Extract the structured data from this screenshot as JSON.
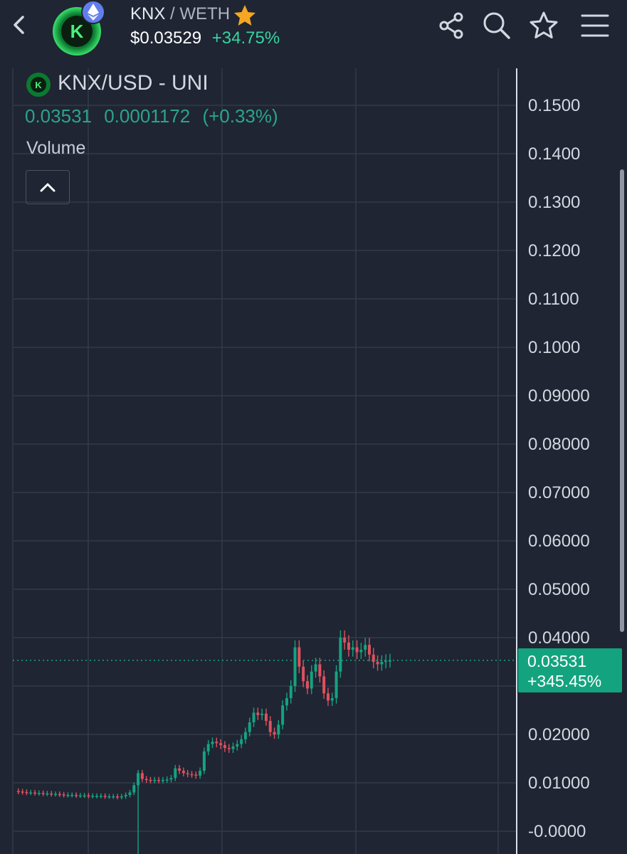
{
  "header": {
    "base_symbol": "KNX",
    "separator": "/",
    "quote_symbol": "WETH",
    "price": "$0.03529",
    "change": "+34.75%",
    "icons": [
      "back-icon",
      "share-icon",
      "search-icon",
      "star-outline-icon",
      "menu-icon"
    ],
    "favorite_icon": "star-filled-icon",
    "chain_badge": "ethereum-icon",
    "logo_letter": "K"
  },
  "legend": {
    "title": "KNX/USD - UNI",
    "last": "0.03531",
    "change_abs": "0.0001172",
    "change_pct": "(+0.33%)",
    "volume_label": "Volume",
    "collapse_icon": "chevron-up-icon"
  },
  "price_tag": {
    "value": "0.03531",
    "change": "+345.45%"
  },
  "colors": {
    "background": "#1f2533",
    "up": "#14a37f",
    "down": "#e0505e",
    "accent_green": "#38d3a0",
    "star": "#f5a623"
  },
  "chart_data": {
    "type": "candlestick",
    "y_ticks": [
      "0.1500",
      "0.1400",
      "0.1300",
      "0.1200",
      "0.1100",
      "0.1000",
      "0.09000",
      "0.08000",
      "0.07000",
      "0.06000",
      "0.05000",
      "0.04000",
      "0.03000",
      "0.02000",
      "0.01000",
      "-0.0000"
    ],
    "ylim": [
      -0.001,
      0.156
    ],
    "last_price": 0.03531,
    "grid": true,
    "price_points": [
      0.0083,
      0.0082,
      0.0081,
      0.008,
      0.008,
      0.0079,
      0.0079,
      0.0078,
      0.0078,
      0.0077,
      0.0077,
      0.0076,
      0.0075,
      0.0075,
      0.0075,
      0.0074,
      0.0074,
      0.0074,
      0.0073,
      0.0073,
      0.0073,
      0.0073,
      0.0072,
      0.0072,
      0.0072,
      0.0071,
      0.0072,
      0.0075,
      0.008,
      0.0095,
      0.012,
      0.0108,
      0.0106,
      0.0105,
      0.0106,
      0.0105,
      0.0106,
      0.0107,
      0.011,
      0.013,
      0.0125,
      0.012,
      0.0118,
      0.0117,
      0.0115,
      0.0125,
      0.0165,
      0.018,
      0.0185,
      0.0182,
      0.0178,
      0.0172,
      0.017,
      0.0175,
      0.018,
      0.019,
      0.0205,
      0.0225,
      0.0245,
      0.024,
      0.0243,
      0.0228,
      0.0205,
      0.02,
      0.022,
      0.026,
      0.0275,
      0.03,
      0.038,
      0.034,
      0.031,
      0.0295,
      0.033,
      0.0345,
      0.032,
      0.0285,
      0.027,
      0.0275,
      0.033,
      0.04,
      0.039,
      0.0375,
      0.038,
      0.037,
      0.0375,
      0.0385,
      0.0365,
      0.035,
      0.0345,
      0.035,
      0.0352,
      0.0353
    ]
  }
}
